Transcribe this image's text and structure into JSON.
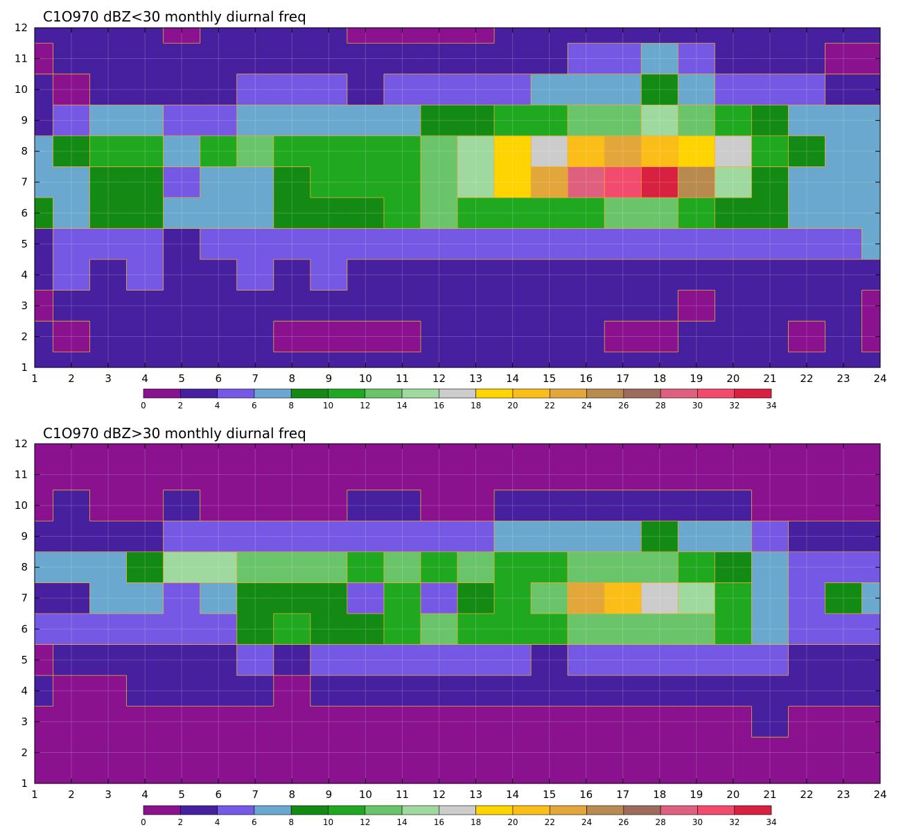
{
  "colorbar": {
    "levels": [
      0,
      2,
      4,
      6,
      8,
      10,
      12,
      14,
      16,
      18,
      20,
      22,
      24,
      26,
      28,
      30,
      32,
      34
    ],
    "labels": [
      "0",
      "2",
      "4",
      "6",
      "8",
      "10",
      "12",
      "14",
      "16",
      "18",
      "20",
      "22",
      "24",
      "26",
      "28",
      "30",
      "32",
      "34"
    ],
    "colors": [
      "#8a128f",
      "#4720a0",
      "#7559e4",
      "#6aa8d0",
      "#138a13",
      "#20a820",
      "#6ac46a",
      "#9fd99f",
      "#cccccc",
      "#ffd400",
      "#fbbd18",
      "#e3a63b",
      "#b98a50",
      "#9c6b5b",
      "#de5f7e",
      "#f24b6d",
      "#d82040"
    ]
  },
  "contour_line_color": "#f0b030",
  "chart_data": [
    {
      "type": "heatmap",
      "title": "C1O970 dBZ<30 monthly diurnal freq",
      "xlabel": "",
      "ylabel": "",
      "x": [
        1,
        2,
        3,
        4,
        5,
        6,
        7,
        8,
        9,
        10,
        11,
        12,
        13,
        14,
        15,
        16,
        17,
        18,
        19,
        20,
        21,
        22,
        23,
        24
      ],
      "y": [
        1,
        2,
        3,
        4,
        5,
        6,
        7,
        8,
        9,
        10,
        11,
        12
      ],
      "xlim": [
        1,
        24
      ],
      "ylim": [
        1,
        12
      ],
      "x_tick_labels": [
        "1",
        "2",
        "3",
        "4",
        "5",
        "6",
        "7",
        "8",
        "9",
        "10",
        "11",
        "12",
        "13",
        "14",
        "15",
        "16",
        "17",
        "18",
        "19",
        "20",
        "21",
        "22",
        "23",
        "24"
      ],
      "y_tick_labels": [
        "1",
        "2",
        "3",
        "4",
        "5",
        "6",
        "7",
        "8",
        "9",
        "10",
        "11",
        "12"
      ],
      "grid": true,
      "values": [
        [
          3,
          3,
          3,
          3,
          3,
          3,
          3,
          3,
          3,
          2,
          3,
          3,
          3,
          3,
          3,
          3,
          3,
          3,
          3,
          3,
          3,
          3,
          3,
          3
        ],
        [
          3,
          1,
          3,
          3,
          3,
          3,
          3,
          1,
          1,
          1,
          1,
          3,
          3,
          3,
          3,
          3,
          1,
          1,
          3,
          3,
          3,
          1,
          3,
          1
        ],
        [
          1,
          3,
          3,
          3,
          3,
          3,
          3,
          3,
          3,
          3,
          3,
          3,
          3,
          3,
          3,
          3,
          3,
          3,
          1,
          3,
          3,
          3,
          3,
          1
        ],
        [
          3,
          5,
          3,
          5,
          3,
          3,
          5,
          3,
          5,
          3,
          3,
          3,
          3,
          3,
          3,
          3,
          3,
          3,
          3,
          3,
          3,
          3,
          3,
          3
        ],
        [
          3,
          5,
          5,
          5,
          3,
          5,
          5,
          5,
          5,
          5,
          5,
          5,
          5,
          5,
          5,
          5,
          5,
          5,
          5,
          5,
          5,
          5,
          5,
          7
        ],
        [
          9,
          7,
          9,
          9,
          7,
          7,
          7,
          9,
          9,
          9,
          11,
          13,
          11,
          11,
          11,
          11,
          13,
          13,
          11,
          9,
          9,
          7,
          7,
          7
        ],
        [
          7,
          7,
          9,
          9,
          5,
          7,
          7,
          9,
          11,
          11,
          11,
          13,
          15,
          19,
          23,
          29,
          31,
          33,
          25,
          15,
          9,
          7,
          7,
          7
        ],
        [
          7,
          9,
          11,
          11,
          7,
          11,
          13,
          11,
          11,
          11,
          11,
          13,
          15,
          19,
          17,
          21,
          23,
          21,
          19,
          17,
          11,
          9,
          7,
          7
        ],
        [
          3,
          5,
          7,
          7,
          5,
          5,
          7,
          7,
          7,
          7,
          7,
          9,
          9,
          11,
          11,
          13,
          13,
          15,
          13,
          11,
          9,
          7,
          7,
          7
        ],
        [
          3,
          1,
          3,
          3,
          3,
          3,
          5,
          5,
          5,
          3,
          5,
          5,
          5,
          5,
          7,
          7,
          7,
          9,
          7,
          5,
          5,
          5,
          3,
          3
        ],
        [
          1,
          3,
          3,
          3,
          3,
          3,
          3,
          3,
          3,
          3,
          3,
          3,
          3,
          3,
          3,
          5,
          5,
          7,
          5,
          3,
          3,
          3,
          1,
          1
        ],
        [
          3,
          3,
          3,
          3,
          1,
          3,
          3,
          3,
          3,
          1,
          1,
          1,
          1,
          3,
          3,
          3,
          3,
          3,
          3,
          3,
          3,
          3,
          3,
          3
        ]
      ]
    },
    {
      "type": "heatmap",
      "title": "C1O970 dBZ>30 monthly diurnal freq",
      "xlabel": "",
      "ylabel": "",
      "x": [
        1,
        2,
        3,
        4,
        5,
        6,
        7,
        8,
        9,
        10,
        11,
        12,
        13,
        14,
        15,
        16,
        17,
        18,
        19,
        20,
        21,
        22,
        23,
        24
      ],
      "y": [
        1,
        2,
        3,
        4,
        5,
        6,
        7,
        8,
        9,
        10,
        11,
        12
      ],
      "xlim": [
        1,
        24
      ],
      "ylim": [
        1,
        12
      ],
      "x_tick_labels": [
        "1",
        "2",
        "3",
        "4",
        "5",
        "6",
        "7",
        "8",
        "9",
        "10",
        "11",
        "12",
        "13",
        "14",
        "15",
        "16",
        "17",
        "18",
        "19",
        "20",
        "21",
        "22",
        "23",
        "24"
      ],
      "y_tick_labels": [
        "1",
        "2",
        "3",
        "4",
        "5",
        "6",
        "7",
        "8",
        "9",
        "10",
        "11",
        "12"
      ],
      "grid": true,
      "values": [
        [
          1,
          1,
          1,
          1,
          1,
          1,
          1,
          1,
          1,
          1,
          1,
          1,
          1,
          1,
          1,
          1,
          1,
          1,
          1,
          1,
          1,
          1,
          1,
          1
        ],
        [
          1,
          1,
          1,
          1,
          1,
          1,
          1,
          1,
          1,
          1,
          1,
          1,
          1,
          1,
          1,
          1,
          1,
          1,
          1,
          1,
          1,
          1,
          1,
          1
        ],
        [
          1,
          1,
          1,
          1,
          1,
          1,
          1,
          1,
          1,
          1,
          1,
          1,
          1,
          1,
          1,
          1,
          1,
          1,
          1,
          1,
          3,
          1,
          1,
          1
        ],
        [
          3,
          1,
          1,
          3,
          3,
          3,
          3,
          1,
          3,
          3,
          3,
          3,
          3,
          3,
          3,
          3,
          3,
          3,
          3,
          3,
          3,
          3,
          3,
          3
        ],
        [
          1,
          3,
          3,
          3,
          3,
          3,
          5,
          3,
          5,
          5,
          5,
          5,
          5,
          5,
          3,
          5,
          5,
          5,
          5,
          5,
          5,
          3,
          3,
          3
        ],
        [
          5,
          5,
          5,
          5,
          5,
          5,
          9,
          11,
          9,
          9,
          11,
          13,
          11,
          11,
          11,
          13,
          13,
          13,
          13,
          11,
          7,
          5,
          5,
          5
        ],
        [
          3,
          3,
          7,
          7,
          5,
          7,
          9,
          9,
          9,
          5,
          11,
          5,
          9,
          11,
          13,
          23,
          21,
          17,
          15,
          11,
          7,
          5,
          9,
          7
        ],
        [
          7,
          7,
          7,
          9,
          15,
          15,
          13,
          13,
          13,
          11,
          13,
          11,
          13,
          11,
          11,
          13,
          13,
          13,
          11,
          9,
          7,
          5,
          5,
          5
        ],
        [
          3,
          3,
          3,
          3,
          5,
          5,
          5,
          5,
          5,
          5,
          5,
          5,
          5,
          7,
          7,
          7,
          7,
          9,
          7,
          7,
          5,
          3,
          3,
          3
        ],
        [
          1,
          3,
          1,
          1,
          3,
          1,
          1,
          1,
          1,
          3,
          3,
          1,
          1,
          3,
          3,
          3,
          3,
          3,
          3,
          3,
          1,
          1,
          1,
          1
        ],
        [
          1,
          1,
          1,
          1,
          1,
          1,
          1,
          1,
          1,
          1,
          1,
          1,
          1,
          1,
          1,
          1,
          1,
          1,
          1,
          1,
          1,
          1,
          1,
          1
        ],
        [
          1,
          1,
          1,
          1,
          1,
          1,
          1,
          1,
          1,
          1,
          1,
          1,
          1,
          1,
          1,
          1,
          1,
          1,
          1,
          1,
          1,
          1,
          1,
          1
        ]
      ]
    }
  ]
}
